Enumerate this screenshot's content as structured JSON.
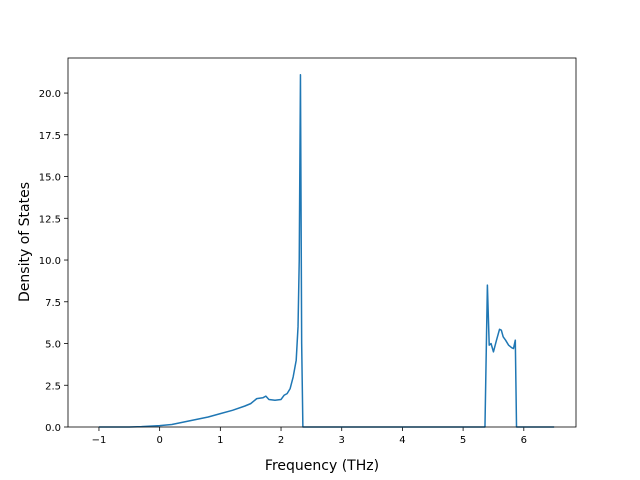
{
  "chart_data": {
    "type": "line",
    "x_label": "Frequency (THz)",
    "y_label": "Density of States",
    "xlim": [
      -1.51,
      6.86
    ],
    "ylim": [
      0,
      22.1
    ],
    "xticks": [
      {
        "value": -1,
        "label": "−1"
      },
      0,
      1,
      2,
      3,
      4,
      5,
      6
    ],
    "yticks": [
      {
        "value": 0,
        "label": "0.0"
      },
      2.5,
      {
        "value": 5,
        "label": "5.0"
      },
      7.5,
      {
        "value": 10,
        "label": "10.0"
      },
      12.5,
      {
        "value": 15,
        "label": "15.0"
      },
      17.5,
      {
        "value": 20,
        "label": "20.0"
      }
    ],
    "x": [
      -1,
      -0.5,
      -0.3,
      0,
      0.2,
      0.4,
      0.6,
      0.8,
      1.0,
      1.2,
      1.4,
      1.5,
      1.6,
      1.7,
      1.75,
      1.8,
      1.9,
      2.0,
      2.05,
      2.1,
      2.15,
      2.2,
      2.25,
      2.28,
      2.3,
      2.32,
      2.34,
      2.36,
      3,
      4,
      5,
      5.36,
      5.4,
      5.43,
      5.46,
      5.5,
      5.55,
      5.6,
      5.63,
      5.66,
      5.7,
      5.75,
      5.8,
      5.83,
      5.86,
      5.88,
      6,
      6.5
    ],
    "series": [
      {
        "color": "#1f77b4",
        "values": [
          0,
          0,
          0.02,
          0.08,
          0.15,
          0.3,
          0.45,
          0.6,
          0.8,
          1.0,
          1.25,
          1.4,
          1.7,
          1.75,
          1.85,
          1.65,
          1.6,
          1.65,
          1.9,
          2.0,
          2.3,
          3.0,
          4.0,
          6.0,
          10.0,
          21.1,
          5,
          0,
          0,
          0,
          0,
          0,
          8.5,
          4.9,
          5.0,
          4.5,
          5.2,
          5.85,
          5.8,
          5.4,
          5.2,
          4.9,
          4.75,
          4.7,
          5.2,
          0,
          0,
          0
        ]
      }
    ]
  }
}
